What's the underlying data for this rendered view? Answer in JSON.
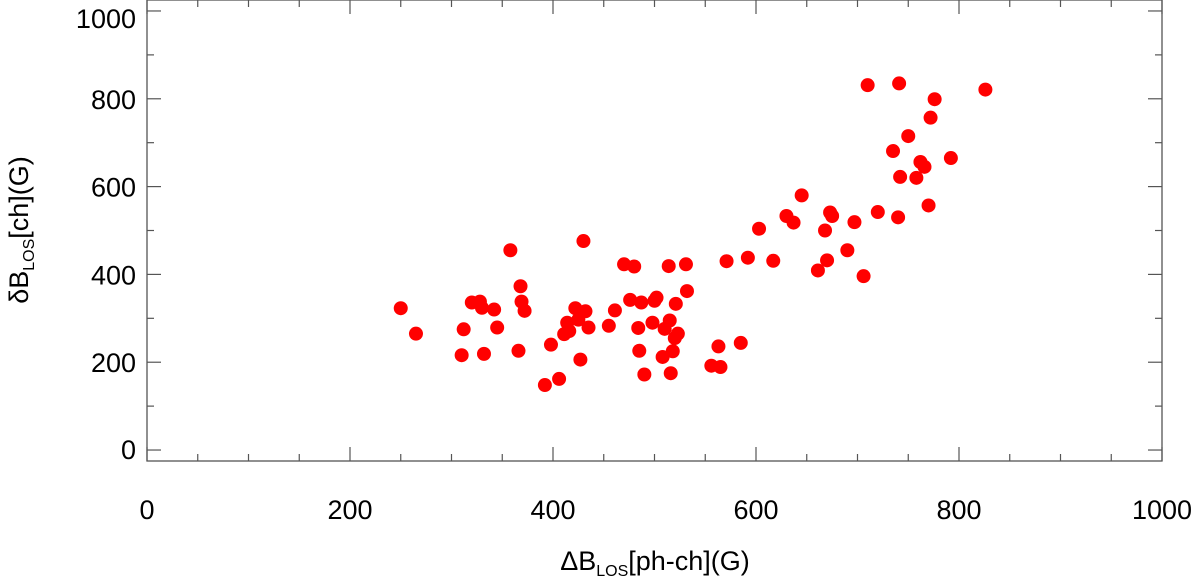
{
  "chart_data": {
    "type": "scatter",
    "xlabel": {
      "prefix": "ΔB",
      "sub": "LOS",
      "suffix": "[ph-ch](G)"
    },
    "ylabel": {
      "prefix": "δB",
      "sub": "LOS",
      "suffix": "[ch](G)"
    },
    "xlim": [
      0,
      1000
    ],
    "ylim": [
      -25,
      1025
    ],
    "xticks": [
      0,
      200,
      400,
      600,
      800,
      1000
    ],
    "xtick_labels": [
      "0",
      "200",
      "400",
      "600",
      "800",
      "1000"
    ],
    "yticks": [
      0,
      200,
      400,
      600,
      800,
      1000
    ],
    "ytick_labels": [
      "0",
      "200",
      "400",
      "600",
      "800",
      "1000"
    ],
    "marker_color": "#ff0000",
    "grid": false,
    "points": [
      [
        250,
        323
      ],
      [
        265,
        265
      ],
      [
        310,
        216
      ],
      [
        312,
        275
      ],
      [
        320,
        336
      ],
      [
        328,
        338
      ],
      [
        330,
        324
      ],
      [
        332,
        219
      ],
      [
        342,
        320
      ],
      [
        345,
        279
      ],
      [
        358,
        455
      ],
      [
        366,
        226
      ],
      [
        368,
        373
      ],
      [
        369,
        338
      ],
      [
        372,
        317
      ],
      [
        392,
        148
      ],
      [
        398,
        240
      ],
      [
        406,
        162
      ],
      [
        411,
        264
      ],
      [
        414,
        290
      ],
      [
        416,
        271
      ],
      [
        422,
        323
      ],
      [
        425,
        297
      ],
      [
        427,
        206
      ],
      [
        430,
        476
      ],
      [
        432,
        316
      ],
      [
        435,
        279
      ],
      [
        455,
        283
      ],
      [
        461,
        318
      ],
      [
        470,
        423
      ],
      [
        476,
        342
      ],
      [
        480,
        418
      ],
      [
        484,
        278
      ],
      [
        485,
        226
      ],
      [
        487,
        336
      ],
      [
        490,
        172
      ],
      [
        498,
        290
      ],
      [
        500,
        340
      ],
      [
        502,
        347
      ],
      [
        508,
        212
      ],
      [
        510,
        276
      ],
      [
        514,
        419
      ],
      [
        515,
        295
      ],
      [
        516,
        175
      ],
      [
        518,
        225
      ],
      [
        520,
        255
      ],
      [
        521,
        333
      ],
      [
        523,
        265
      ],
      [
        531,
        423
      ],
      [
        532,
        362
      ],
      [
        556,
        192
      ],
      [
        563,
        236
      ],
      [
        565,
        189
      ],
      [
        571,
        430
      ],
      [
        585,
        244
      ],
      [
        592,
        438
      ],
      [
        603,
        504
      ],
      [
        617,
        431
      ],
      [
        630,
        533
      ],
      [
        637,
        518
      ],
      [
        645,
        580
      ],
      [
        661,
        409
      ],
      [
        668,
        500
      ],
      [
        670,
        432
      ],
      [
        673,
        541
      ],
      [
        675,
        533
      ],
      [
        690,
        455
      ],
      [
        697,
        519
      ],
      [
        706,
        396
      ],
      [
        710,
        831
      ],
      [
        720,
        542
      ],
      [
        735,
        681
      ],
      [
        740,
        530
      ],
      [
        741,
        835
      ],
      [
        742,
        622
      ],
      [
        750,
        715
      ],
      [
        758,
        620
      ],
      [
        762,
        656
      ],
      [
        766,
        645
      ],
      [
        770,
        557
      ],
      [
        772,
        757
      ],
      [
        776,
        799
      ],
      [
        792,
        665
      ],
      [
        826,
        821
      ]
    ]
  }
}
